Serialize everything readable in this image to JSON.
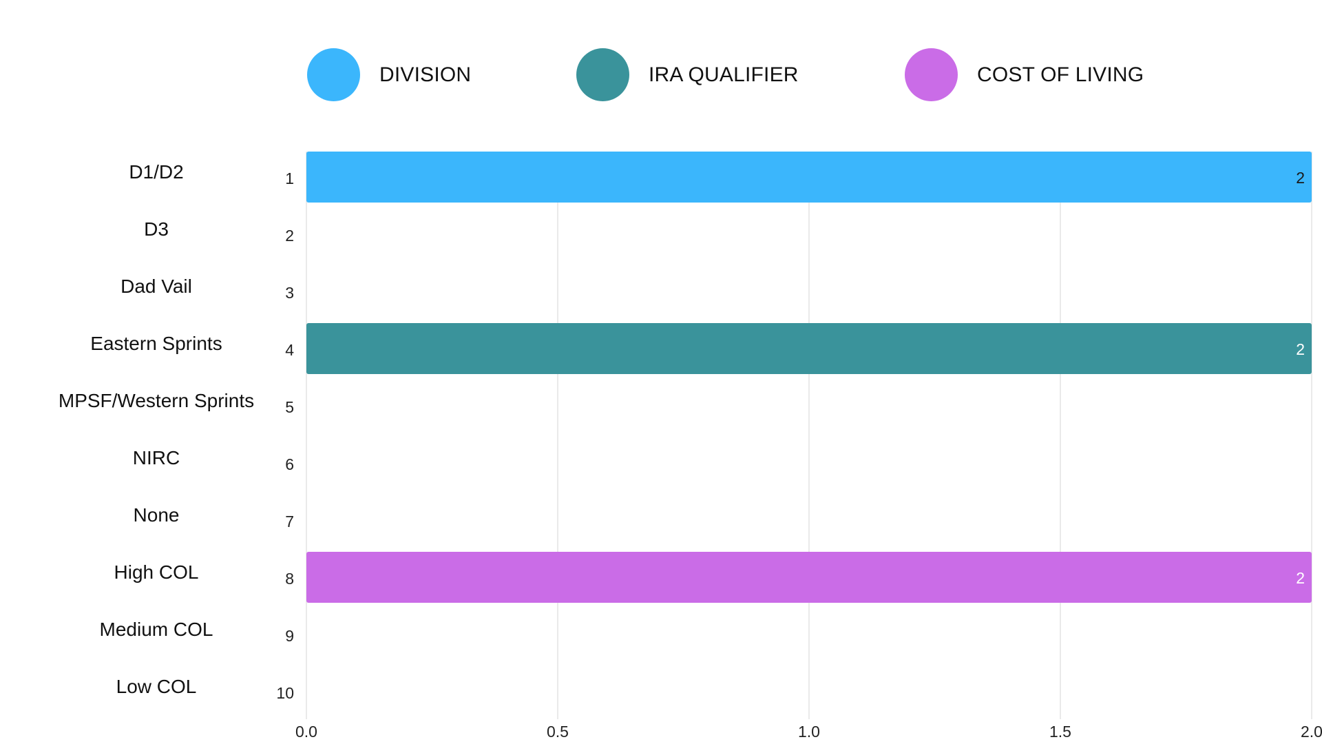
{
  "legend": [
    {
      "label": "DIVISION",
      "color": "#3bb6fc"
    },
    {
      "label": "IRA QUALIFIER",
      "color": "#3a939b"
    },
    {
      "label": "COST OF LIVING",
      "color": "#ca6ce7"
    }
  ],
  "chart_data": {
    "type": "bar",
    "orientation": "horizontal",
    "categories": [
      "D1/D2",
      "D3",
      "Dad Vail",
      "Eastern Sprints",
      "MPSF/Western Sprints",
      "NIRC",
      "None",
      "High COL",
      "Medium COL",
      "Low COL"
    ],
    "index_labels": [
      "1",
      "2",
      "3",
      "4",
      "5",
      "6",
      "7",
      "8",
      "9",
      "10"
    ],
    "series": [
      {
        "name": "DIVISION",
        "color": "#3bb6fc",
        "values": [
          2,
          0,
          0,
          0,
          0,
          0,
          0,
          0,
          0,
          0
        ]
      },
      {
        "name": "IRA QUALIFIER",
        "color": "#3a939b",
        "values": [
          0,
          0,
          0,
          2,
          0,
          0,
          0,
          0,
          0,
          0
        ]
      },
      {
        "name": "COST OF LIVING",
        "color": "#ca6ce7",
        "values": [
          0,
          0,
          0,
          0,
          0,
          0,
          0,
          2,
          0,
          0
        ]
      }
    ],
    "xlim": [
      0,
      2
    ],
    "xticks": [
      "0.0",
      "0.5",
      "1.0",
      "1.5",
      "2.0"
    ],
    "grid": true,
    "legend_position": "top",
    "data_label_colors": {
      "DIVISION": "#1a1a1a",
      "IRA QUALIFIER": "#ffffff",
      "COST OF LIVING": "#ffffff"
    }
  }
}
